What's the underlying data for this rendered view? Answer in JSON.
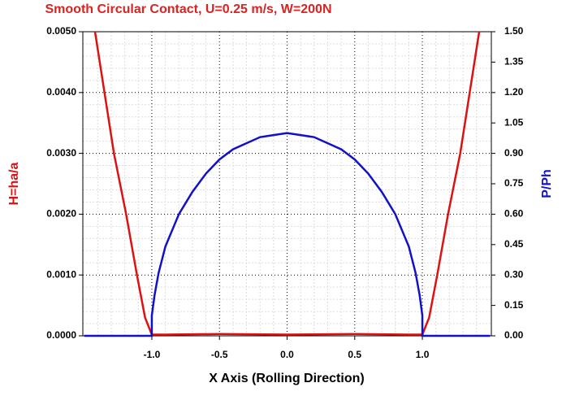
{
  "chart_data": {
    "type": "line",
    "title": "Smooth Circular Contact, U=0.25 m/s, W=200N",
    "x_label": "X Axis (Rolling Direction)",
    "y_label": "H=ha/a",
    "y2_label": "P/Ph",
    "xlim": [
      -1.51,
      1.51
    ],
    "xticks": [
      {
        "value": -1.0,
        "label": "-1.0"
      },
      {
        "value": -0.5,
        "label": "-0.5"
      },
      {
        "value": 0,
        "label": "0.0"
      },
      {
        "value": 0.5,
        "label": "0.5"
      },
      {
        "value": 1.0,
        "label": "1.0"
      }
    ],
    "ylim": [
      0,
      0.005
    ],
    "yticks": [
      {
        "value": 0,
        "label": "0.0000"
      },
      {
        "value": 0.001,
        "label": "0.0010"
      },
      {
        "value": 0.002,
        "label": "0.0020"
      },
      {
        "value": 0.003,
        "label": "0.0030"
      },
      {
        "value": 0.004,
        "label": "0.0040"
      },
      {
        "value": 0.005,
        "label": "0.0050"
      }
    ],
    "y2lim": [
      0,
      1.5
    ],
    "y2ticks": [
      {
        "value": 0,
        "label": "0.00"
      },
      {
        "value": 0.15,
        "label": "0.15"
      },
      {
        "value": 0.3,
        "label": "0.30"
      },
      {
        "value": 0.45,
        "label": "0.45"
      },
      {
        "value": 0.6,
        "label": "0.60"
      },
      {
        "value": 0.75,
        "label": "0.75"
      },
      {
        "value": 0.9,
        "label": "0.90"
      },
      {
        "value": 1.05,
        "label": "1.05"
      },
      {
        "value": 1.2,
        "label": "1.20"
      },
      {
        "value": 1.35,
        "label": "1.35"
      },
      {
        "value": 1.5,
        "label": "1.50"
      }
    ],
    "grid": true,
    "series": [
      {
        "color": "#dd1111",
        "axis": "y",
        "x": [
          -1.42,
          -1.35,
          -1.28,
          -1.19,
          -1.11,
          -1.05,
          -1.0,
          -0.9,
          -0.5,
          0,
          0.5,
          0.9,
          1.0,
          1.05,
          1.11,
          1.19,
          1.28,
          1.35,
          1.42
        ],
        "values": [
          0.005,
          0.004,
          0.003,
          0.002,
          0.001,
          0.0003,
          2e-05,
          2e-05,
          3e-05,
          2e-05,
          3e-05,
          2e-05,
          2e-05,
          0.0003,
          0.001,
          0.002,
          0.003,
          0.004,
          0.005
        ]
      },
      {
        "color": "#1111cc",
        "axis": "y2",
        "x": [
          -1.5,
          -1.0,
          -1.0,
          -0.98,
          -0.95,
          -0.9,
          -0.8,
          -0.7,
          -0.6,
          -0.5,
          -0.4,
          -0.3,
          -0.2,
          -0.1,
          0,
          0.1,
          0.2,
          0.3,
          0.4,
          0.5,
          0.6,
          0.7,
          0.8,
          0.9,
          0.95,
          0.98,
          1.0,
          1.0,
          1.5
        ],
        "values": [
          0,
          0,
          0.1,
          0.2,
          0.31,
          0.44,
          0.6,
          0.71,
          0.8,
          0.87,
          0.92,
          0.95,
          0.98,
          0.99,
          1.0,
          0.99,
          0.98,
          0.95,
          0.92,
          0.87,
          0.8,
          0.71,
          0.6,
          0.44,
          0.31,
          0.2,
          0.1,
          0,
          0
        ]
      }
    ]
  }
}
